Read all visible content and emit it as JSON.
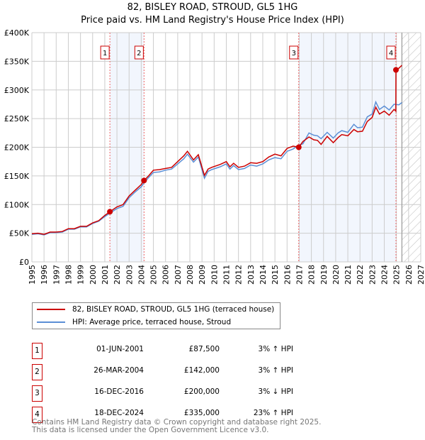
{
  "title": "82, BISLEY ROAD, STROUD, GL5 1HG",
  "subtitle": "Price paid vs. HM Land Registry's House Price Index (HPI)",
  "chart_data": {
    "type": "line",
    "title": "82, BISLEY ROAD, STROUD, GL5 1HG",
    "subtitle": "Price paid vs. HM Land Registry's House Price Index (HPI)",
    "xlim": [
      1995,
      2027
    ],
    "ylim": [
      0,
      400000
    ],
    "x_ticks": [
      "1995",
      "1996",
      "1997",
      "1998",
      "1999",
      "2000",
      "2001",
      "2002",
      "2003",
      "2004",
      "2005",
      "2006",
      "2007",
      "2008",
      "2009",
      "2010",
      "2011",
      "2012",
      "2013",
      "2014",
      "2015",
      "2016",
      "2017",
      "2018",
      "2019",
      "2020",
      "2021",
      "2022",
      "2023",
      "2024",
      "2025",
      "2026",
      "2027"
    ],
    "y_ticks": [
      {
        "v": 0,
        "label": "£0"
      },
      {
        "v": 50000,
        "label": "£50K"
      },
      {
        "v": 100000,
        "label": "£100K"
      },
      {
        "v": 150000,
        "label": "£150K"
      },
      {
        "v": 200000,
        "label": "£200K"
      },
      {
        "v": 250000,
        "label": "£250K"
      },
      {
        "v": 300000,
        "label": "£300K"
      },
      {
        "v": 350000,
        "label": "£350K"
      },
      {
        "v": 400000,
        "label": "£400K"
      }
    ],
    "grid": true,
    "forecast_start": 2025.45,
    "shaded_ranges": [
      [
        2001.42,
        2004.23
      ],
      [
        2016.96,
        2024.96
      ]
    ],
    "series": [
      {
        "name": "82, BISLEY ROAD, STROUD, GL5 1HG (terraced house)",
        "color": "#cc0000",
        "x": [
          1995,
          1995.5,
          1996,
          1996.5,
          1997,
          1997.5,
          1998,
          1998.5,
          1999,
          1999.5,
          2000,
          2000.5,
          2001,
          2001.42,
          2002,
          2002.5,
          2003,
          2003.5,
          2004,
          2004.23,
          2004.6,
          2005,
          2005.5,
          2006,
          2006.5,
          2007,
          2007.5,
          2007.8,
          2008.3,
          2008.7,
          2009.2,
          2009.5,
          2009.8,
          2010.5,
          2011,
          2011.3,
          2011.6,
          2012,
          2012.5,
          2013,
          2013.5,
          2014,
          2014.5,
          2015,
          2015.5,
          2016,
          2016.5,
          2016.96,
          2017.3,
          2017.8,
          2018.2,
          2018.5,
          2018.8,
          2019.3,
          2019.8,
          2020.2,
          2020.5,
          2021,
          2021.5,
          2021.8,
          2022.2,
          2022.6,
          2023,
          2023.3,
          2023.6,
          2024,
          2024.4,
          2024.8,
          2024.95,
          2024.96,
          2025.2,
          2025.45
        ],
        "y": [
          49000,
          50000,
          48000,
          52000,
          52000,
          53000,
          58000,
          58000,
          62000,
          62000,
          68000,
          72000,
          81000,
          87500,
          96000,
          100000,
          115000,
          125000,
          135000,
          142000,
          150000,
          160000,
          161000,
          163000,
          165000,
          175000,
          185000,
          193000,
          178000,
          187000,
          151000,
          162000,
          165000,
          170000,
          175000,
          166000,
          172000,
          165000,
          167000,
          173000,
          172000,
          175000,
          183000,
          188000,
          185000,
          198000,
          202000,
          200000,
          210000,
          218000,
          213000,
          212000,
          205000,
          219000,
          208000,
          217000,
          222000,
          220000,
          231000,
          227000,
          228000,
          245000,
          252000,
          270000,
          258000,
          263000,
          256000,
          266000,
          263000,
          335000,
          338000,
          343000
        ]
      },
      {
        "name": "HPI: Average price, terraced house, Stroud",
        "color": "#5b8fd6",
        "x": [
          1995,
          1995.5,
          1996,
          1996.5,
          1997,
          1997.5,
          1998,
          1998.5,
          1999,
          1999.5,
          2000,
          2000.5,
          2001,
          2001.42,
          2002,
          2002.5,
          2003,
          2003.5,
          2004,
          2004.23,
          2004.6,
          2005,
          2005.5,
          2006,
          2006.5,
          2007,
          2007.5,
          2007.8,
          2008.3,
          2008.7,
          2009.2,
          2009.5,
          2009.8,
          2010.5,
          2011,
          2011.3,
          2011.6,
          2012,
          2012.5,
          2013,
          2013.5,
          2014,
          2014.5,
          2015,
          2015.5,
          2016,
          2016.5,
          2016.96,
          2017.3,
          2017.8,
          2018.2,
          2018.5,
          2018.8,
          2019.3,
          2019.8,
          2020.2,
          2020.5,
          2021,
          2021.5,
          2021.8,
          2022.2,
          2022.6,
          2023,
          2023.3,
          2023.6,
          2024,
          2024.4,
          2024.8,
          2025.2,
          2025.45
        ],
        "y": [
          48000,
          49000,
          47000,
          51000,
          51000,
          52000,
          57000,
          57000,
          61000,
          61000,
          67000,
          71000,
          79000,
          85000,
          93000,
          97000,
          112000,
          122000,
          131000,
          138000,
          147000,
          156000,
          157000,
          160000,
          162000,
          171000,
          180000,
          188000,
          174000,
          183000,
          146000,
          158000,
          161000,
          166000,
          171000,
          162000,
          168000,
          161000,
          163000,
          169000,
          167000,
          171000,
          178000,
          182000,
          180000,
          193000,
          197000,
          204000,
          206000,
          225000,
          221000,
          220000,
          215000,
          226000,
          216000,
          225000,
          229000,
          226000,
          240000,
          234000,
          235000,
          253000,
          258000,
          279000,
          266000,
          272000,
          265000,
          275000,
          274000,
          278000
        ]
      }
    ],
    "sales": [
      {
        "label": "1",
        "x": 2001.42,
        "y": 87500
      },
      {
        "label": "2",
        "x": 2004.23,
        "y": 142000
      },
      {
        "label": "3",
        "x": 2016.96,
        "y": 200000
      },
      {
        "label": "4",
        "x": 2024.96,
        "y": 335000
      }
    ]
  },
  "legend": {
    "property": "82, BISLEY ROAD, STROUD, GL5 1HG (terraced house)",
    "hpi": "HPI: Average price, terraced house, Stroud"
  },
  "transactions": [
    {
      "num": "1",
      "date": "01-JUN-2001",
      "price": "£87,500",
      "hpi": "3% ↑ HPI"
    },
    {
      "num": "2",
      "date": "26-MAR-2004",
      "price": "£142,000",
      "hpi": "3% ↑ HPI"
    },
    {
      "num": "3",
      "date": "16-DEC-2016",
      "price": "£200,000",
      "hpi": "3% ↓ HPI"
    },
    {
      "num": "4",
      "date": "18-DEC-2024",
      "price": "£335,000",
      "hpi": "23% ↑ HPI"
    }
  ],
  "footer": {
    "line1": "Contains HM Land Registry data © Crown copyright and database right 2025.",
    "line2": "This data is licensed under the Open Government Licence v3.0."
  }
}
